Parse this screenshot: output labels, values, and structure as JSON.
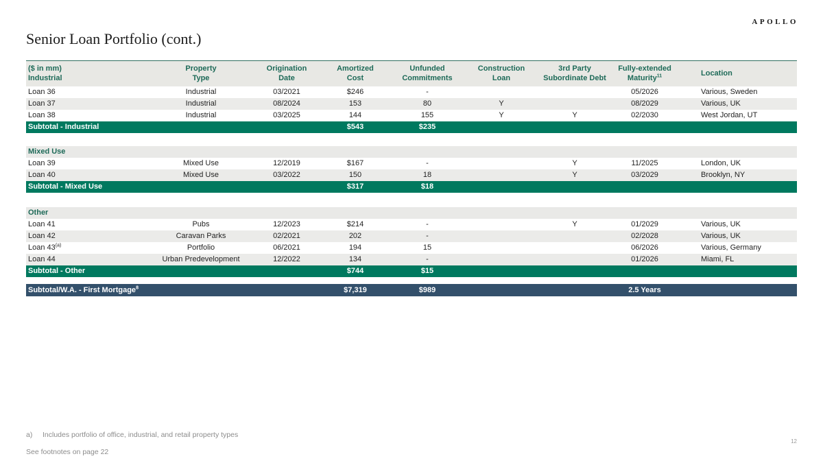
{
  "brand": "APOLLO",
  "title": "Senior Loan Portfolio (cont.)",
  "page_number": "12",
  "colors": {
    "subtotal_teal": "#00795F",
    "grand_navy": "#33506B",
    "header_text_teal": "#1E6A58",
    "row_shade": "#EBEBE9",
    "header_bg": "#E8E8E4"
  },
  "table": {
    "header": {
      "col0": {
        "top": "($ in mm)",
        "bottom": "Industrial"
      },
      "cols": [
        {
          "top": "Property",
          "bottom": "Type"
        },
        {
          "top": "Origination",
          "bottom": "Date"
        },
        {
          "top": "Amortized",
          "bottom": "Cost"
        },
        {
          "top": "Unfunded",
          "bottom": "Commitments"
        },
        {
          "top": "Construction",
          "bottom": "Loan"
        },
        {
          "top": "3rd Party",
          "bottom": "Subordinate Debt"
        },
        {
          "top": "Fully-extended",
          "bottom": "Maturity",
          "sup": "11"
        },
        {
          "top": "",
          "bottom": "Location"
        }
      ]
    },
    "rows": [
      {
        "type": "loan",
        "name": "Loan 36",
        "cells": [
          "Industrial",
          "03/2021",
          "$246",
          "-",
          "",
          "",
          "05/2026",
          "Various, Sweden"
        ]
      },
      {
        "type": "loan",
        "shade": true,
        "name": "Loan 37",
        "cells": [
          "Industrial",
          "08/2024",
          "153",
          "80",
          "Y",
          "",
          "08/2029",
          "Various, UK"
        ]
      },
      {
        "type": "loan",
        "name": "Loan 38",
        "cells": [
          "Industrial",
          "03/2025",
          "144",
          "155",
          "Y",
          "Y",
          "02/2030",
          "West Jordan, UT"
        ]
      },
      {
        "type": "subtotal",
        "name": "Subtotal - Industrial",
        "cells": [
          "",
          "",
          "$543",
          "$235",
          "",
          "",
          "",
          ""
        ]
      },
      {
        "type": "spacer",
        "height": 19
      },
      {
        "type": "section",
        "name": "Mixed Use",
        "cells": [
          "",
          "",
          "",
          "",
          "",
          "",
          "",
          ""
        ]
      },
      {
        "type": "loan",
        "name": "Loan 39",
        "cells": [
          "Mixed Use",
          "12/2019",
          "$167",
          "-",
          "",
          "Y",
          "11/2025",
          "London, UK"
        ]
      },
      {
        "type": "loan",
        "shade": true,
        "name": "Loan 40",
        "cells": [
          "Mixed Use",
          "03/2022",
          "150",
          "18",
          "",
          "Y",
          "03/2029",
          "Brooklyn, NY"
        ]
      },
      {
        "type": "subtotal",
        "name": "Subtotal - Mixed Use",
        "cells": [
          "",
          "",
          "$317",
          "$18",
          "",
          "",
          "",
          ""
        ]
      },
      {
        "type": "spacer",
        "height": 21
      },
      {
        "type": "section",
        "name": "Other",
        "cells": [
          "",
          "",
          "",
          "",
          "",
          "",
          "",
          ""
        ]
      },
      {
        "type": "loan",
        "name": "Loan 41",
        "cells": [
          "Pubs",
          "12/2023",
          "$214",
          "-",
          "",
          "Y",
          "01/2029",
          "Various, UK"
        ]
      },
      {
        "type": "loan",
        "shade": true,
        "name": "Loan 42",
        "cells": [
          "Caravan Parks",
          "02/2021",
          "202",
          "-",
          "",
          "",
          "02/2028",
          "Various, UK"
        ]
      },
      {
        "type": "loan",
        "name": "Loan 43",
        "sup": "(a)",
        "cells": [
          "Portfolio",
          "06/2021",
          "194",
          "15",
          "",
          "",
          "06/2026",
          "Various, Germany"
        ]
      },
      {
        "type": "loan",
        "shade": true,
        "name": "Loan 44",
        "cells": [
          "Urban Predevelopment",
          "12/2022",
          "134",
          "-",
          "",
          "",
          "01/2026",
          "Miami, FL"
        ]
      },
      {
        "type": "subtotal",
        "name": "Subtotal - Other",
        "cells": [
          "",
          "",
          "$744",
          "$15",
          "",
          "",
          "",
          ""
        ]
      },
      {
        "type": "spacer",
        "height": 10
      },
      {
        "type": "grand",
        "name": "Subtotal/W.A. - First Mortgage",
        "sup": "8",
        "cells": [
          "",
          "",
          "$7,319",
          "$989",
          "",
          "",
          "2.5 Years",
          ""
        ]
      }
    ]
  },
  "footnotes": {
    "a_label": "a)",
    "a_text": "Includes portfolio of office, industrial, and retail property types",
    "see": "See footnotes on page 22"
  }
}
